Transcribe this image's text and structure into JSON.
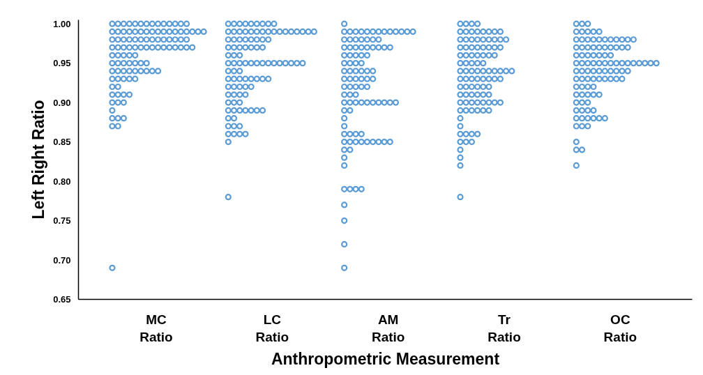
{
  "chart_data": {
    "type": "scatter",
    "xlabel": "Anthropometric Measurement",
    "ylabel": "Left Right Ratio",
    "categories": [
      "MC\nRatio",
      "LC\nRatio",
      "AM\nRatio",
      "Tr\nRatio",
      "OC\nRatio"
    ],
    "ylim": [
      0.65,
      1.005
    ],
    "yticks": [
      0.65,
      {
        "value": 0.7,
        "label": "0.70"
      },
      0.75,
      {
        "value": 0.8,
        "label": "0.80"
      },
      0.85,
      {
        "value": 0.9,
        "label": "0.90"
      },
      0.95,
      {
        "value": 1.0,
        "label": "1.00"
      }
    ],
    "grid": false,
    "marker": "circle",
    "series": [
      {
        "color": "#5b9bd5",
        "x": [
          "MC\nRatio",
          "MC\nRatio",
          "MC\nRatio",
          "MC\nRatio",
          "MC\nRatio",
          "MC\nRatio",
          "MC\nRatio",
          "MC\nRatio",
          "MC\nRatio",
          "MC\nRatio",
          "MC\nRatio",
          "MC\nRatio",
          "MC\nRatio",
          "MC\nRatio",
          "MC\nRatio",
          "MC\nRatio",
          "MC\nRatio",
          "MC\nRatio",
          "MC\nRatio",
          "MC\nRatio",
          "MC\nRatio",
          "MC\nRatio",
          "MC\nRatio",
          "MC\nRatio",
          "MC\nRatio",
          "MC\nRatio",
          "MC\nRatio",
          "MC\nRatio",
          "MC\nRatio",
          "MC\nRatio",
          "MC\nRatio",
          "MC\nRatio",
          "MC\nRatio",
          "MC\nRatio",
          "MC\nRatio",
          "MC\nRatio",
          "MC\nRatio",
          "MC\nRatio",
          "MC\nRatio",
          "MC\nRatio",
          "MC\nRatio",
          "MC\nRatio",
          "MC\nRatio",
          "MC\nRatio",
          "MC\nRatio",
          "MC\nRatio",
          "MC\nRatio",
          "MC\nRatio",
          "MC\nRatio",
          "MC\nRatio",
          "MC\nRatio",
          "MC\nRatio",
          "MC\nRatio",
          "MC\nRatio",
          "MC\nRatio",
          "MC\nRatio",
          "MC\nRatio",
          "MC\nRatio",
          "MC\nRatio",
          "MC\nRatio",
          "MC\nRatio",
          "MC\nRatio",
          "MC\nRatio",
          "MC\nRatio",
          "MC\nRatio",
          "MC\nRatio",
          "MC\nRatio",
          "MC\nRatio",
          "MC\nRatio",
          "MC\nRatio",
          "MC\nRatio",
          "MC\nRatio",
          "MC\nRatio",
          "MC\nRatio",
          "MC\nRatio",
          "MC\nRatio",
          "MC\nRatio",
          "MC\nRatio",
          "MC\nRatio",
          "MC\nRatio",
          "MC\nRatio",
          "MC\nRatio",
          "MC\nRatio",
          "MC\nRatio",
          "MC\nRatio",
          "MC\nRatio",
          "MC\nRatio",
          "MC\nRatio",
          "MC\nRatio",
          "MC\nRatio",
          "MC\nRatio",
          "MC\nRatio",
          "MC\nRatio",
          "MC\nRatio",
          "MC\nRatio",
          "MC\nRatio",
          "MC\nRatio",
          "MC\nRatio",
          "MC\nRatio",
          "MC\nRatio",
          "MC\nRatio",
          "MC\nRatio"
        ],
        "values": [
          1.0,
          1.0,
          1.0,
          1.0,
          1.0,
          1.0,
          1.0,
          1.0,
          1.0,
          1.0,
          1.0,
          1.0,
          1.0,
          1.0,
          0.99,
          0.99,
          0.99,
          0.99,
          0.99,
          0.99,
          0.99,
          0.99,
          0.99,
          0.99,
          0.99,
          0.99,
          0.99,
          0.99,
          0.99,
          0.99,
          0.99,
          0.98,
          0.98,
          0.98,
          0.98,
          0.98,
          0.98,
          0.98,
          0.98,
          0.98,
          0.98,
          0.98,
          0.98,
          0.98,
          0.98,
          0.97,
          0.97,
          0.97,
          0.97,
          0.97,
          0.97,
          0.97,
          0.97,
          0.97,
          0.97,
          0.97,
          0.97,
          0.97,
          0.97,
          0.97,
          0.96,
          0.96,
          0.96,
          0.96,
          0.96,
          0.95,
          0.95,
          0.95,
          0.95,
          0.95,
          0.95,
          0.95,
          0.94,
          0.94,
          0.94,
          0.94,
          0.94,
          0.94,
          0.94,
          0.94,
          0.94,
          0.93,
          0.93,
          0.93,
          0.93,
          0.93,
          0.92,
          0.92,
          0.91,
          0.91,
          0.91,
          0.91,
          0.9,
          0.9,
          0.9,
          0.89,
          0.88,
          0.88,
          0.88,
          0.87,
          0.87,
          0.69
        ]
      },
      {
        "color": "#5b9bd5",
        "x": [
          "LC\nRatio",
          "LC\nRatio",
          "LC\nRatio",
          "LC\nRatio",
          "LC\nRatio",
          "LC\nRatio",
          "LC\nRatio",
          "LC\nRatio",
          "LC\nRatio",
          "LC\nRatio",
          "LC\nRatio",
          "LC\nRatio",
          "LC\nRatio",
          "LC\nRatio",
          "LC\nRatio",
          "LC\nRatio",
          "LC\nRatio",
          "LC\nRatio",
          "LC\nRatio",
          "LC\nRatio",
          "LC\nRatio",
          "LC\nRatio",
          "LC\nRatio",
          "LC\nRatio",
          "LC\nRatio",
          "LC\nRatio",
          "LC\nRatio",
          "LC\nRatio",
          "LC\nRatio",
          "LC\nRatio",
          "LC\nRatio",
          "LC\nRatio",
          "LC\nRatio",
          "LC\nRatio",
          "LC\nRatio",
          "LC\nRatio",
          "LC\nRatio",
          "LC\nRatio",
          "LC\nRatio",
          "LC\nRatio",
          "LC\nRatio",
          "LC\nRatio",
          "LC\nRatio",
          "LC\nRatio",
          "LC\nRatio",
          "LC\nRatio",
          "LC\nRatio",
          "LC\nRatio",
          "LC\nRatio",
          "LC\nRatio",
          "LC\nRatio",
          "LC\nRatio",
          "LC\nRatio",
          "LC\nRatio",
          "LC\nRatio",
          "LC\nRatio",
          "LC\nRatio",
          "LC\nRatio",
          "LC\nRatio",
          "LC\nRatio",
          "LC\nRatio",
          "LC\nRatio",
          "LC\nRatio",
          "LC\nRatio",
          "LC\nRatio",
          "LC\nRatio",
          "LC\nRatio",
          "LC\nRatio",
          "LC\nRatio",
          "LC\nRatio",
          "LC\nRatio",
          "LC\nRatio",
          "LC\nRatio",
          "LC\nRatio",
          "LC\nRatio",
          "LC\nRatio",
          "LC\nRatio",
          "LC\nRatio",
          "LC\nRatio",
          "LC\nRatio",
          "LC\nRatio",
          "LC\nRatio",
          "LC\nRatio",
          "LC\nRatio",
          "LC\nRatio",
          "LC\nRatio",
          "LC\nRatio",
          "LC\nRatio",
          "LC\nRatio",
          "LC\nRatio",
          "LC\nRatio",
          "LC\nRatio",
          "LC\nRatio",
          "LC\nRatio",
          "LC\nRatio",
          "LC\nRatio",
          "LC\nRatio",
          "LC\nRatio"
        ],
        "values": [
          1.0,
          1.0,
          1.0,
          1.0,
          1.0,
          1.0,
          1.0,
          1.0,
          1.0,
          0.99,
          0.99,
          0.99,
          0.99,
          0.99,
          0.99,
          0.99,
          0.99,
          0.99,
          0.99,
          0.99,
          0.99,
          0.99,
          0.99,
          0.99,
          0.99,
          0.98,
          0.98,
          0.98,
          0.98,
          0.98,
          0.98,
          0.98,
          0.98,
          0.97,
          0.97,
          0.97,
          0.97,
          0.97,
          0.97,
          0.97,
          0.96,
          0.96,
          0.96,
          0.95,
          0.95,
          0.95,
          0.95,
          0.95,
          0.95,
          0.95,
          0.95,
          0.95,
          0.95,
          0.95,
          0.95,
          0.95,
          0.95,
          0.94,
          0.94,
          0.94,
          0.93,
          0.93,
          0.93,
          0.93,
          0.93,
          0.93,
          0.93,
          0.93,
          0.92,
          0.92,
          0.92,
          0.92,
          0.92,
          0.91,
          0.91,
          0.91,
          0.91,
          0.9,
          0.9,
          0.9,
          0.89,
          0.89,
          0.89,
          0.89,
          0.89,
          0.89,
          0.89,
          0.88,
          0.88,
          0.87,
          0.87,
          0.87,
          0.86,
          0.86,
          0.86,
          0.86,
          0.85,
          0.78
        ]
      },
      {
        "color": "#5b9bd5",
        "x": [
          "AM\nRatio",
          "AM\nRatio",
          "AM\nRatio",
          "AM\nRatio",
          "AM\nRatio",
          "AM\nRatio",
          "AM\nRatio",
          "AM\nRatio",
          "AM\nRatio",
          "AM\nRatio",
          "AM\nRatio",
          "AM\nRatio",
          "AM\nRatio",
          "AM\nRatio",
          "AM\nRatio",
          "AM\nRatio",
          "AM\nRatio",
          "AM\nRatio",
          "AM\nRatio",
          "AM\nRatio",
          "AM\nRatio",
          "AM\nRatio",
          "AM\nRatio",
          "AM\nRatio",
          "AM\nRatio",
          "AM\nRatio",
          "AM\nRatio",
          "AM\nRatio",
          "AM\nRatio",
          "AM\nRatio",
          "AM\nRatio",
          "AM\nRatio",
          "AM\nRatio",
          "AM\nRatio",
          "AM\nRatio",
          "AM\nRatio",
          "AM\nRatio",
          "AM\nRatio",
          "AM\nRatio",
          "AM\nRatio",
          "AM\nRatio",
          "AM\nRatio",
          "AM\nRatio",
          "AM\nRatio",
          "AM\nRatio",
          "AM\nRatio",
          "AM\nRatio",
          "AM\nRatio",
          "AM\nRatio",
          "AM\nRatio",
          "AM\nRatio",
          "AM\nRatio",
          "AM\nRatio",
          "AM\nRatio",
          "AM\nRatio",
          "AM\nRatio",
          "AM\nRatio",
          "AM\nRatio",
          "AM\nRatio",
          "AM\nRatio",
          "AM\nRatio",
          "AM\nRatio",
          "AM\nRatio",
          "AM\nRatio",
          "AM\nRatio",
          "AM\nRatio",
          "AM\nRatio",
          "AM\nRatio",
          "AM\nRatio",
          "AM\nRatio",
          "AM\nRatio",
          "AM\nRatio",
          "AM\nRatio",
          "AM\nRatio",
          "AM\nRatio",
          "AM\nRatio",
          "AM\nRatio",
          "AM\nRatio",
          "AM\nRatio",
          "AM\nRatio",
          "AM\nRatio",
          "AM\nRatio",
          "AM\nRatio",
          "AM\nRatio",
          "AM\nRatio",
          "AM\nRatio",
          "AM\nRatio",
          "AM\nRatio",
          "AM\nRatio",
          "AM\nRatio",
          "AM\nRatio",
          "AM\nRatio",
          "AM\nRatio",
          "AM\nRatio",
          "AM\nRatio",
          "AM\nRatio",
          "AM\nRatio",
          "AM\nRatio"
        ],
        "values": [
          1.0,
          0.99,
          0.99,
          0.99,
          0.99,
          0.99,
          0.99,
          0.99,
          0.99,
          0.99,
          0.99,
          0.99,
          0.99,
          0.99,
          0.98,
          0.98,
          0.98,
          0.98,
          0.98,
          0.98,
          0.98,
          0.97,
          0.97,
          0.97,
          0.97,
          0.97,
          0.97,
          0.97,
          0.97,
          0.97,
          0.96,
          0.96,
          0.96,
          0.96,
          0.96,
          0.95,
          0.95,
          0.95,
          0.95,
          0.94,
          0.94,
          0.94,
          0.94,
          0.94,
          0.94,
          0.93,
          0.93,
          0.93,
          0.93,
          0.93,
          0.93,
          0.92,
          0.92,
          0.92,
          0.92,
          0.92,
          0.91,
          0.91,
          0.91,
          0.9,
          0.9,
          0.9,
          0.9,
          0.9,
          0.9,
          0.9,
          0.9,
          0.9,
          0.9,
          0.89,
          0.89,
          0.88,
          0.87,
          0.86,
          0.86,
          0.86,
          0.86,
          0.85,
          0.85,
          0.85,
          0.85,
          0.85,
          0.85,
          0.85,
          0.85,
          0.85,
          0.84,
          0.84,
          0.83,
          0.82,
          0.79,
          0.79,
          0.79,
          0.79,
          0.77,
          0.75,
          0.72,
          0.69
        ]
      },
      {
        "color": "#5b9bd5",
        "x": [
          "Tr\nRatio",
          "Tr\nRatio",
          "Tr\nRatio",
          "Tr\nRatio",
          "Tr\nRatio",
          "Tr\nRatio",
          "Tr\nRatio",
          "Tr\nRatio",
          "Tr\nRatio",
          "Tr\nRatio",
          "Tr\nRatio",
          "Tr\nRatio",
          "Tr\nRatio",
          "Tr\nRatio",
          "Tr\nRatio",
          "Tr\nRatio",
          "Tr\nRatio",
          "Tr\nRatio",
          "Tr\nRatio",
          "Tr\nRatio",
          "Tr\nRatio",
          "Tr\nRatio",
          "Tr\nRatio",
          "Tr\nRatio",
          "Tr\nRatio",
          "Tr\nRatio",
          "Tr\nRatio",
          "Tr\nRatio",
          "Tr\nRatio",
          "Tr\nRatio",
          "Tr\nRatio",
          "Tr\nRatio",
          "Tr\nRatio",
          "Tr\nRatio",
          "Tr\nRatio",
          "Tr\nRatio",
          "Tr\nRatio",
          "Tr\nRatio",
          "Tr\nRatio",
          "Tr\nRatio",
          "Tr\nRatio",
          "Tr\nRatio",
          "Tr\nRatio",
          "Tr\nRatio",
          "Tr\nRatio",
          "Tr\nRatio",
          "Tr\nRatio",
          "Tr\nRatio",
          "Tr\nRatio",
          "Tr\nRatio",
          "Tr\nRatio",
          "Tr\nRatio",
          "Tr\nRatio",
          "Tr\nRatio",
          "Tr\nRatio",
          "Tr\nRatio",
          "Tr\nRatio",
          "Tr\nRatio",
          "Tr\nRatio",
          "Tr\nRatio",
          "Tr\nRatio",
          "Tr\nRatio",
          "Tr\nRatio",
          "Tr\nRatio",
          "Tr\nRatio",
          "Tr\nRatio",
          "Tr\nRatio",
          "Tr\nRatio",
          "Tr\nRatio",
          "Tr\nRatio",
          "Tr\nRatio",
          "Tr\nRatio",
          "Tr\nRatio",
          "Tr\nRatio",
          "Tr\nRatio",
          "Tr\nRatio",
          "Tr\nRatio",
          "Tr\nRatio",
          "Tr\nRatio",
          "Tr\nRatio",
          "Tr\nRatio",
          "Tr\nRatio",
          "Tr\nRatio",
          "Tr\nRatio",
          "Tr\nRatio",
          "Tr\nRatio",
          "Tr\nRatio",
          "Tr\nRatio",
          "Tr\nRatio",
          "Tr\nRatio",
          "Tr\nRatio",
          "Tr\nRatio",
          "Tr\nRatio",
          "Tr\nRatio",
          "Tr\nRatio",
          "Tr\nRatio",
          "Tr\nRatio",
          "Tr\nRatio"
        ],
        "values": [
          1.0,
          1.0,
          1.0,
          1.0,
          0.99,
          0.99,
          0.99,
          0.99,
          0.99,
          0.99,
          0.99,
          0.99,
          0.98,
          0.98,
          0.98,
          0.98,
          0.98,
          0.98,
          0.98,
          0.98,
          0.98,
          0.97,
          0.97,
          0.97,
          0.97,
          0.97,
          0.97,
          0.97,
          0.97,
          0.96,
          0.96,
          0.96,
          0.96,
          0.96,
          0.96,
          0.96,
          0.95,
          0.95,
          0.95,
          0.95,
          0.95,
          0.94,
          0.94,
          0.94,
          0.94,
          0.94,
          0.94,
          0.94,
          0.94,
          0.94,
          0.94,
          0.93,
          0.93,
          0.93,
          0.93,
          0.93,
          0.93,
          0.93,
          0.93,
          0.92,
          0.92,
          0.92,
          0.92,
          0.92,
          0.92,
          0.91,
          0.91,
          0.91,
          0.91,
          0.91,
          0.91,
          0.9,
          0.9,
          0.9,
          0.9,
          0.9,
          0.9,
          0.9,
          0.9,
          0.89,
          0.89,
          0.89,
          0.89,
          0.89,
          0.89,
          0.88,
          0.87,
          0.86,
          0.86,
          0.86,
          0.86,
          0.85,
          0.85,
          0.85,
          0.84,
          0.83,
          0.82,
          0.78
        ]
      },
      {
        "color": "#5b9bd5",
        "x": [
          "OC\nRatio",
          "OC\nRatio",
          "OC\nRatio",
          "OC\nRatio",
          "OC\nRatio",
          "OC\nRatio",
          "OC\nRatio",
          "OC\nRatio",
          "OC\nRatio",
          "OC\nRatio",
          "OC\nRatio",
          "OC\nRatio",
          "OC\nRatio",
          "OC\nRatio",
          "OC\nRatio",
          "OC\nRatio",
          "OC\nRatio",
          "OC\nRatio",
          "OC\nRatio",
          "OC\nRatio",
          "OC\nRatio",
          "OC\nRatio",
          "OC\nRatio",
          "OC\nRatio",
          "OC\nRatio",
          "OC\nRatio",
          "OC\nRatio",
          "OC\nRatio",
          "OC\nRatio",
          "OC\nRatio",
          "OC\nRatio",
          "OC\nRatio",
          "OC\nRatio",
          "OC\nRatio",
          "OC\nRatio",
          "OC\nRatio",
          "OC\nRatio",
          "OC\nRatio",
          "OC\nRatio",
          "OC\nRatio",
          "OC\nRatio",
          "OC\nRatio",
          "OC\nRatio",
          "OC\nRatio",
          "OC\nRatio",
          "OC\nRatio",
          "OC\nRatio",
          "OC\nRatio",
          "OC\nRatio",
          "OC\nRatio",
          "OC\nRatio",
          "OC\nRatio",
          "OC\nRatio",
          "OC\nRatio",
          "OC\nRatio",
          "OC\nRatio",
          "OC\nRatio",
          "OC\nRatio",
          "OC\nRatio",
          "OC\nRatio",
          "OC\nRatio",
          "OC\nRatio",
          "OC\nRatio",
          "OC\nRatio",
          "OC\nRatio",
          "OC\nRatio",
          "OC\nRatio",
          "OC\nRatio",
          "OC\nRatio",
          "OC\nRatio",
          "OC\nRatio",
          "OC\nRatio",
          "OC\nRatio",
          "OC\nRatio",
          "OC\nRatio",
          "OC\nRatio",
          "OC\nRatio",
          "OC\nRatio",
          "OC\nRatio",
          "OC\nRatio",
          "OC\nRatio",
          "OC\nRatio",
          "OC\nRatio",
          "OC\nRatio",
          "OC\nRatio",
          "OC\nRatio",
          "OC\nRatio",
          "OC\nRatio",
          "OC\nRatio",
          "OC\nRatio",
          "OC\nRatio",
          "OC\nRatio",
          "OC\nRatio",
          "OC\nRatio",
          "OC\nRatio",
          "OC\nRatio",
          "OC\nRatio",
          "OC\nRatio",
          "OC\nRatio"
        ],
        "values": [
          1.0,
          1.0,
          1.0,
          0.99,
          0.99,
          0.99,
          0.99,
          0.99,
          0.98,
          0.98,
          0.98,
          0.98,
          0.98,
          0.98,
          0.98,
          0.98,
          0.98,
          0.98,
          0.98,
          0.97,
          0.97,
          0.97,
          0.97,
          0.97,
          0.97,
          0.97,
          0.97,
          0.97,
          0.97,
          0.96,
          0.96,
          0.96,
          0.96,
          0.96,
          0.96,
          0.96,
          0.95,
          0.95,
          0.95,
          0.95,
          0.95,
          0.95,
          0.95,
          0.95,
          0.95,
          0.95,
          0.95,
          0.95,
          0.95,
          0.95,
          0.95,
          0.94,
          0.94,
          0.94,
          0.94,
          0.94,
          0.94,
          0.94,
          0.94,
          0.94,
          0.94,
          0.93,
          0.93,
          0.93,
          0.93,
          0.93,
          0.93,
          0.93,
          0.93,
          0.93,
          0.92,
          0.92,
          0.92,
          0.92,
          0.91,
          0.91,
          0.91,
          0.91,
          0.91,
          0.9,
          0.9,
          0.9,
          0.89,
          0.89,
          0.89,
          0.89,
          0.88,
          0.88,
          0.88,
          0.88,
          0.88,
          0.88,
          0.87,
          0.87,
          0.87,
          0.85,
          0.84,
          0.84,
          0.82
        ]
      }
    ]
  }
}
